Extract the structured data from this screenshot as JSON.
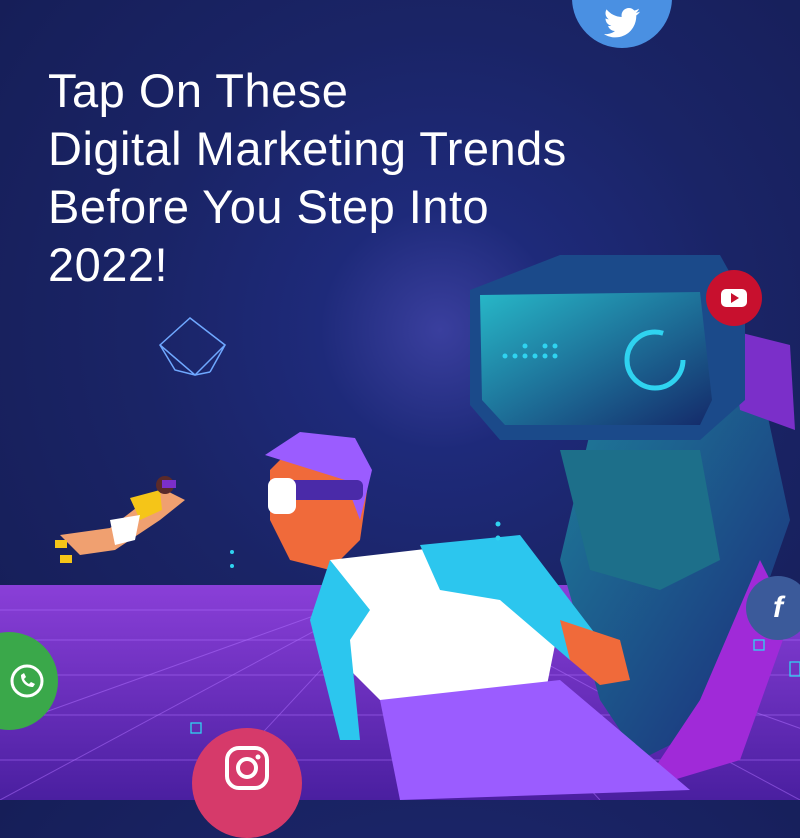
{
  "headline": {
    "lines": [
      "Tap On These",
      "Digital Marketing Trends",
      "Before You Step Into",
      "2022!"
    ]
  },
  "social_icons": [
    {
      "name": "twitter",
      "color": "#4a90e2"
    },
    {
      "name": "youtube",
      "color": "#c8102e"
    },
    {
      "name": "facebook",
      "color": "#3b5a9a"
    },
    {
      "name": "whatsapp",
      "color": "#3aa84a"
    },
    {
      "name": "instagram",
      "color": "#d63a6a"
    }
  ],
  "colors": {
    "background": "#1a2466",
    "floor": "#7b2fc9",
    "headset_glow": "#2fd3f0",
    "shirt_sleeve": "#2cc6ee",
    "pants": "#9b5cff"
  }
}
